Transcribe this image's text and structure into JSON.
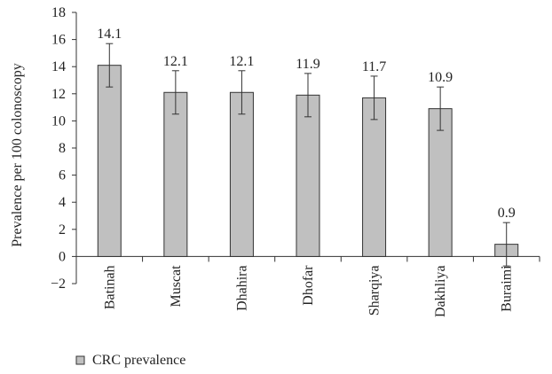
{
  "chart_data": {
    "type": "bar",
    "categories": [
      "Batinah",
      "Muscat",
      "Dhahira",
      "Dhofar",
      "Sharqiya",
      "Dakhliya",
      "Buraimi"
    ],
    "series": [
      {
        "name": "CRC prevalence",
        "values": [
          14.1,
          12.1,
          12.1,
          11.9,
          11.7,
          10.9,
          0.9
        ],
        "labels": [
          "14.1",
          "12.1",
          "12.1",
          "11.9",
          "11.7",
          "10.9",
          "0.9"
        ],
        "error_plus": [
          1.6,
          1.6,
          1.6,
          1.6,
          1.6,
          1.6,
          1.6
        ],
        "error_minus": [
          1.6,
          1.6,
          1.6,
          1.6,
          1.6,
          1.6,
          1.6
        ]
      }
    ],
    "ylabel": "Prevalence per 100 colonoscopy",
    "xlabel": "",
    "ylim": [
      -2,
      18
    ],
    "yticks": [
      -2,
      0,
      2,
      4,
      6,
      8,
      10,
      12,
      14,
      16,
      18
    ],
    "ytick_labels": [
      "−2",
      "0",
      "2",
      "4",
      "6",
      "8",
      "10",
      "12",
      "14",
      "16",
      "18"
    ],
    "grid": false,
    "legend_position": "bottom-left",
    "colors": {
      "bar_fill": "#c0c0c0",
      "bar_stroke": "#333333",
      "axis": "#333333"
    }
  }
}
